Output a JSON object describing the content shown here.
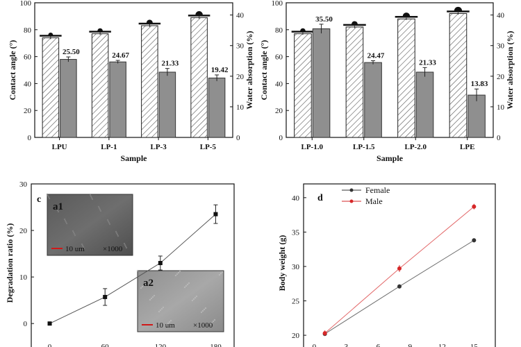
{
  "chart_data": [
    {
      "id": "a",
      "type": "bar",
      "xlabel": "Sample",
      "ylabel": "Contact angle (°)",
      "y2label": "Water absorption (%)",
      "ylim": [
        0,
        100
      ],
      "y2lim": [
        0,
        44
      ],
      "yticks": [
        "0",
        "20",
        "40",
        "60",
        "80",
        "100"
      ],
      "y2ticks": [
        "0",
        "10",
        "20",
        "30",
        "40"
      ],
      "categories": [
        "LPU",
        "LP-1",
        "LP-3",
        "LP-5"
      ],
      "series": [
        {
          "name": "Contact angle",
          "axis": "left",
          "pattern": "hatch",
          "values": [
            74,
            77,
            83,
            89
          ],
          "errors": [
            1.0,
            0.8,
            1.0,
            0.8
          ]
        },
        {
          "name": "Water absorption",
          "axis": "right",
          "pattern": "gray",
          "values": [
            25.5,
            24.67,
            21.33,
            19.42
          ],
          "errors": [
            0.8,
            0.5,
            1.2,
            1.0
          ]
        }
      ],
      "labels": [
        "25.50",
        "24.67",
        "21.33",
        "19.42"
      ]
    },
    {
      "id": "b",
      "type": "bar",
      "xlabel": "Sample",
      "ylabel": "Contact angle (°)",
      "y2label": "Water absorption (%)",
      "ylim": [
        0,
        100
      ],
      "y2lim": [
        0,
        44
      ],
      "yticks": [
        "0",
        "20",
        "40",
        "60",
        "80",
        "100"
      ],
      "y2ticks": [
        "0",
        "10",
        "20",
        "30",
        "40"
      ],
      "categories": [
        "LP-1.0",
        "LP-1.5",
        "LP-2.0",
        "LPE"
      ],
      "series": [
        {
          "name": "Contact angle",
          "axis": "left",
          "pattern": "hatch",
          "values": [
            77,
            82,
            88,
            92
          ],
          "errors": [
            0.8,
            0.8,
            0.8,
            0.8
          ]
        },
        {
          "name": "Water absorption",
          "axis": "right",
          "pattern": "gray",
          "values": [
            35.5,
            24.47,
            21.33,
            13.83
          ],
          "errors": [
            1.5,
            0.6,
            1.5,
            2.0
          ]
        }
      ],
      "labels": [
        "35.50",
        "24.47",
        "21.33",
        "13.83"
      ]
    },
    {
      "id": "c",
      "type": "line",
      "panel_label": "c",
      "xlabel": "",
      "ylabel": "Degradation ratio (%)",
      "xlim": [
        -20,
        200
      ],
      "ylim": [
        -4,
        30
      ],
      "xticks": [
        0,
        60,
        120,
        180
      ],
      "yticks": [
        0,
        10,
        20,
        30
      ],
      "series": [
        {
          "name": "Degradation",
          "x": [
            0,
            60,
            120,
            180
          ],
          "y": [
            0,
            5.7,
            13,
            23.5
          ],
          "errors": [
            0.2,
            1.8,
            1.5,
            2.0
          ]
        }
      ],
      "insets": [
        {
          "tag": "a1",
          "scalebar": "10 um",
          "magnification": "×1000"
        },
        {
          "tag": "a2",
          "scalebar": "10 um",
          "magnification": "×1000"
        }
      ]
    },
    {
      "id": "d",
      "type": "line",
      "panel_label": "d",
      "xlabel": "",
      "ylabel": "Body weight (g)",
      "xlim": [
        -1,
        17
      ],
      "ylim": [
        19,
        42
      ],
      "xticks": [
        0,
        3,
        6,
        9,
        12,
        15
      ],
      "yticks": [
        20,
        25,
        30,
        35,
        40
      ],
      "series": [
        {
          "name": "Female",
          "color": "#333333",
          "x": [
            1,
            8,
            15
          ],
          "y": [
            20.2,
            27.1,
            33.8
          ],
          "errors": [
            0.3,
            0.3,
            0.3
          ]
        },
        {
          "name": "Male",
          "color": "#d62728",
          "x": [
            1,
            8,
            15
          ],
          "y": [
            20.3,
            29.7,
            38.7
          ],
          "errors": [
            0.4,
            0.5,
            0.4
          ]
        }
      ]
    }
  ]
}
